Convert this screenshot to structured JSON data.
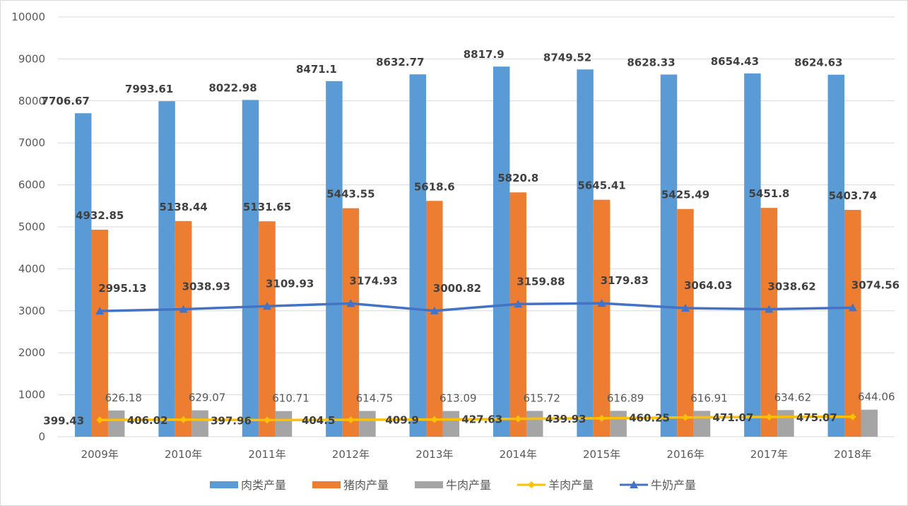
{
  "chart_data": {
    "type": "bar",
    "categories": [
      "2009年",
      "2010年",
      "2011年",
      "2012年",
      "2013年",
      "2014年",
      "2015年",
      "2016年",
      "2017年",
      "2018年"
    ],
    "ylim": [
      0,
      10000
    ],
    "yticks": [
      0,
      1000,
      2000,
      3000,
      4000,
      5000,
      6000,
      7000,
      8000,
      9000,
      10000
    ],
    "grid": true,
    "legend_position": "bottom",
    "series": [
      {
        "name": "肉类产量",
        "type": "bar",
        "color": "#5B9BD5",
        "values": [
          7706.67,
          7993.61,
          8022.98,
          8471.1,
          8632.77,
          8817.9,
          8749.52,
          8628.33,
          8654.43,
          8624.63
        ]
      },
      {
        "name": "猪肉产量",
        "type": "bar",
        "color": "#ED7D31",
        "values": [
          4932.85,
          5138.44,
          5131.65,
          5443.55,
          5618.6,
          5820.8,
          5645.41,
          5425.49,
          5451.8,
          5403.74
        ]
      },
      {
        "name": "牛肉产量",
        "type": "bar",
        "color": "#A5A5A5",
        "values": [
          626.18,
          629.07,
          610.71,
          614.75,
          613.09,
          615.72,
          616.89,
          616.91,
          634.62,
          644.06
        ]
      },
      {
        "name": "羊肉产量",
        "type": "line",
        "marker": "diamond",
        "color": "#FFC000",
        "values": [
          399.43,
          406.02,
          397.96,
          404.5,
          409.9,
          427.63,
          439.93,
          460.25,
          471.07,
          475.07
        ]
      },
      {
        "name": "牛奶产量",
        "type": "line",
        "marker": "triangle",
        "color": "#4472C4",
        "values": [
          2995.13,
          3038.93,
          3109.93,
          3174.93,
          3000.82,
          3159.88,
          3179.83,
          3064.03,
          3038.62,
          3074.56
        ]
      }
    ]
  }
}
